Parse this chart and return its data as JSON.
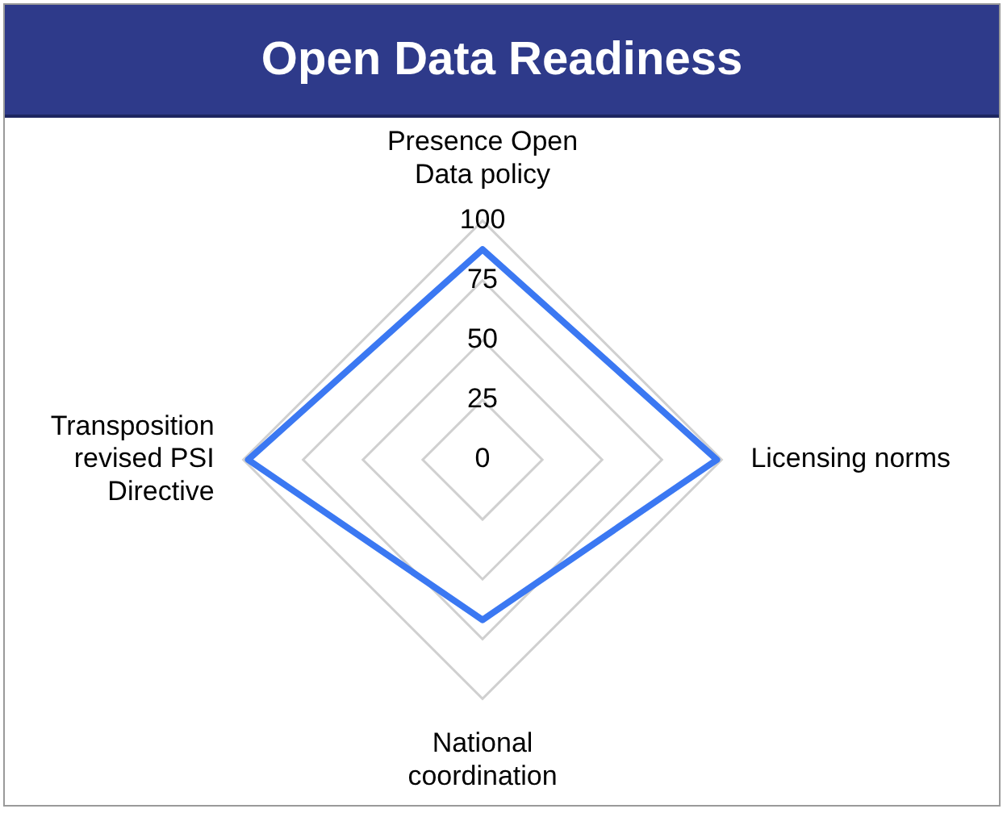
{
  "chart_data": {
    "type": "radar",
    "title": "Open Data Readiness",
    "categories": [
      "Presence Open Data policy",
      "Licensing norms",
      "National coordination",
      "Transposition revised PSI Directive"
    ],
    "series": [
      {
        "color": "#3b78f2",
        "values": [
          88,
          98,
          67,
          98
        ]
      }
    ],
    "ylim": [
      0,
      100
    ],
    "yticks": [
      0,
      25,
      50,
      75,
      100
    ],
    "grid": true,
    "marker": "none",
    "line_style": "solid"
  }
}
